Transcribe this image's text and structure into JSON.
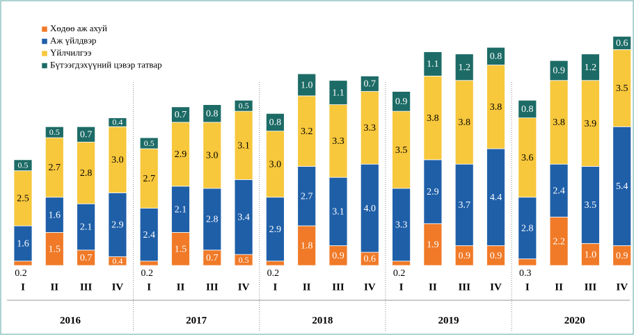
{
  "chart_data": {
    "type": "stacked_bar",
    "categories": [
      "I",
      "II",
      "III",
      "IV",
      "I",
      "II",
      "III",
      "IV",
      "I",
      "II",
      "III",
      "IV",
      "I",
      "II",
      "III",
      "IV",
      "I",
      "II",
      "III",
      "IV"
    ],
    "groups": [
      "2016",
      "2017",
      "2018",
      "2019",
      "2020"
    ],
    "series": [
      {
        "name": "Хөдөө аж ахуй",
        "color": "#f07a28",
        "values": [
          0.2,
          1.5,
          0.7,
          0.4,
          0.2,
          1.5,
          0.7,
          0.5,
          0.2,
          1.8,
          0.9,
          0.6,
          0.2,
          1.9,
          0.9,
          0.9,
          0.3,
          2.2,
          1.0,
          0.9
        ],
        "value_labels": [
          "0.2",
          "1.5",
          "0.7",
          "0.4",
          "0.2",
          "1.5",
          "0.7",
          "0.5",
          "0.2",
          "1.8",
          "0.9",
          "0.6",
          "0.2",
          "1.9",
          "0.9",
          "0.9",
          "0.3",
          "2.2",
          "1.0",
          "0.9"
        ]
      },
      {
        "name": "Аж үйлдвэр",
        "color": "#1f5fa8",
        "values": [
          1.6,
          1.6,
          2.1,
          2.9,
          2.4,
          2.1,
          2.8,
          3.4,
          2.9,
          2.7,
          3.1,
          4.0,
          3.3,
          2.9,
          3.7,
          4.4,
          2.8,
          2.4,
          3.5,
          5.4
        ],
        "value_labels": [
          "1.6",
          "1.6",
          "2.1",
          "2.9",
          "2.4",
          "2.1",
          "2.8",
          "3.4",
          "2.9",
          "2.7",
          "3.1",
          "4.0",
          "3.3",
          "2.9",
          "3.7",
          "4.4",
          "2.8",
          "2.4",
          "3.5",
          "5.4"
        ]
      },
      {
        "name": "Үйлчилгээ",
        "color": "#f7c73c",
        "values": [
          2.5,
          2.7,
          2.8,
          3.0,
          2.7,
          2.9,
          3.0,
          3.1,
          3.0,
          3.2,
          3.3,
          3.3,
          3.5,
          3.8,
          3.8,
          3.8,
          3.6,
          3.8,
          3.9,
          3.5
        ],
        "value_labels": [
          "2.5",
          "2.7",
          "2.8",
          "3.0",
          "2.7",
          "2.9",
          "3.0",
          "3.1",
          "3.0",
          "3.2",
          "3.3",
          "3.3",
          "3.5",
          "3.8",
          "3.8",
          "3.8",
          "3.6",
          "3.8",
          "3.9",
          "3.5"
        ]
      },
      {
        "name": "Бүтээгдэхүүний цэвэр татвар",
        "color": "#1d6b66",
        "values": [
          0.5,
          0.5,
          0.7,
          0.4,
          0.5,
          0.7,
          0.8,
          0.5,
          0.8,
          1.0,
          1.1,
          0.7,
          0.9,
          1.1,
          1.2,
          0.8,
          0.8,
          0.9,
          1.2,
          0.6
        ],
        "value_labels": [
          "0.5",
          "0.5",
          "0.7",
          "0.4",
          "0.5",
          "0.7",
          "0.8",
          "0.5",
          "0.8",
          "1.0",
          "1.1",
          "0.7",
          "0.9",
          "1.1",
          "1.2",
          "0.8",
          "0.8",
          "0.9",
          "1.2",
          "0.6"
        ]
      }
    ]
  }
}
